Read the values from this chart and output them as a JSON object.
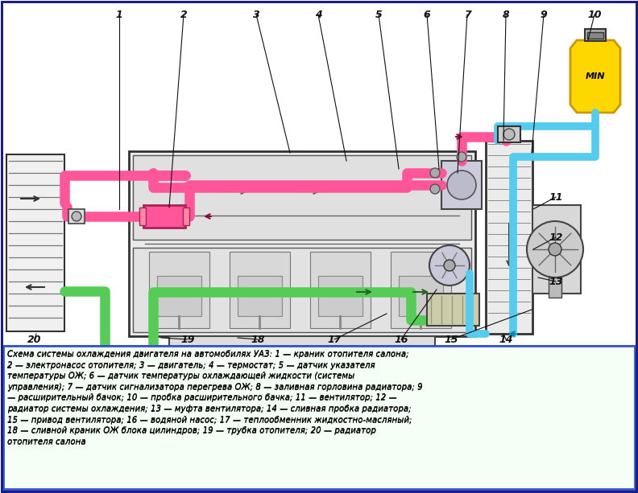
{
  "bg_color": "#ffffff",
  "border_color": "#1a1a8c",
  "caption_border": "#3355cc",
  "caption_bg": "#f5fff5",
  "caption_text": "Схема системы охлаждения двигателя на автомобилях УАЗ: 1 — краник отопителя салона;\n2 — электронасос отопителя; 3 — двигатель; 4 — термостат; 5 — датчик указателя\nтемпературы ОЖ; 6 — датчик температуры охлаждающей жидкости (системы\nуправления); 7 — датчик сигнализатора перегрева ОЖ; 8 — заливная горловина радиатора; 9\n— расширительный бачок; 10 — пробка расширительного бачка; 11 — вентилятор; 12 —\nрадиатор системы охлаждения; 13 — муфта вентилятора; 14 — сливная пробка радиатора;\n15 — привод вентилятора; 16 — водяной насос; 17 — теплообменник жидкостно-масляный;\n18 — сливной краник ОЖ блока цилиндров; 19 — трубка отопителя; 20 — радиатор\nотопителя салона",
  "pink": "#FF5599",
  "green": "#55CC55",
  "cyan": "#55CCEE",
  "yellow": "#FFD700",
  "gray_light": "#E8E8E8",
  "gray_med": "#CCCCCC",
  "gray_dark": "#999999",
  "black": "#222222"
}
